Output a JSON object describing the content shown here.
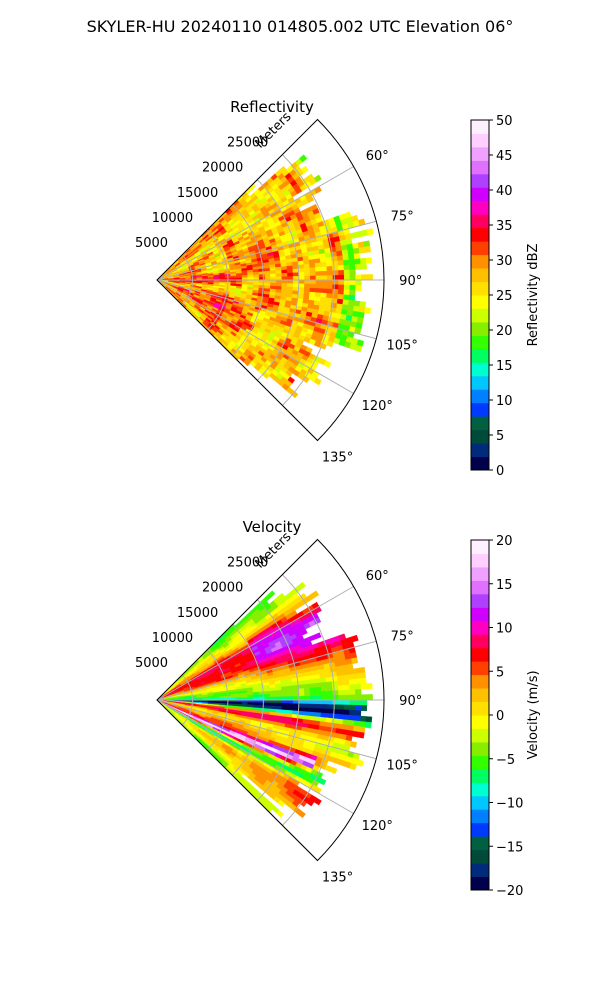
{
  "figure_title": "SKYLER-HU  20240110  014805.002 UTC Elevation 06°",
  "chart_data": [
    {
      "type": "heatmap",
      "projection": "polar-sector",
      "title": "Reflectivity",
      "range_axis_label": "Meters",
      "range_ticks": [
        5000,
        10000,
        15000,
        20000,
        25000
      ],
      "range_tick_labels": [
        "5000",
        "10000",
        "15000",
        "20000",
        "25000"
      ],
      "rlim": [
        0,
        32000
      ],
      "azimuth_range_deg": [
        45,
        135
      ],
      "azimuth_ticks": [
        60,
        75,
        90,
        105,
        120,
        135
      ],
      "azimuth_tick_labels": [
        "60°",
        "75°",
        "90°",
        "105°",
        "120°",
        "135°"
      ],
      "grid": true,
      "data_coverage": {
        "note": "Dense data fills sector from ~47° to ~133°, out to ~25000-31000 m",
        "dominant_value_range": [
          25,
          35
        ],
        "high_core_band_azimuths_deg": [
          83,
          95
        ],
        "high_core_value": 37
      },
      "colorbar": {
        "label": "Reflectivity dBZ",
        "vmin": 0,
        "vmax": 50,
        "ticks": [
          0,
          5,
          10,
          15,
          20,
          25,
          30,
          35,
          40,
          45,
          50
        ],
        "tick_labels": [
          "0",
          "5",
          "10",
          "15",
          "20",
          "25",
          "30",
          "35",
          "40",
          "45",
          "50"
        ],
        "colors": [
          "#00004d",
          "#002a7a",
          "#004a3a",
          "#006040",
          "#003aff",
          "#0080ff",
          "#00c8ff",
          "#00ffd0",
          "#00ff60",
          "#33ff00",
          "#88ee00",
          "#ccff00",
          "#ffff00",
          "#ffe000",
          "#ffc000",
          "#ff9000",
          "#ff4000",
          "#ff0000",
          "#ff0060",
          "#ff00c0",
          "#d000ff",
          "#b040ff",
          "#e070ff",
          "#f0a0ff",
          "#ffd0ff",
          "#fff0ff"
        ]
      }
    },
    {
      "type": "heatmap",
      "projection": "polar-sector",
      "title": "Velocity",
      "range_axis_label": "Meters",
      "range_ticks": [
        5000,
        10000,
        15000,
        20000,
        25000
      ],
      "range_tick_labels": [
        "5000",
        "10000",
        "15000",
        "20000",
        "25000"
      ],
      "rlim": [
        0,
        32000
      ],
      "azimuth_range_deg": [
        45,
        135
      ],
      "azimuth_ticks": [
        60,
        75,
        90,
        105,
        120,
        135
      ],
      "azimuth_tick_labels": [
        "60°",
        "75°",
        "90°",
        "105°",
        "120°",
        "135°"
      ],
      "grid": true,
      "data_coverage": {
        "note": "Banded velocity field: positive (magenta/red) near 65° and ~100°, negative (cyan) near 90-95° and 115-125°",
        "value_range": [
          -20,
          20
        ]
      },
      "colorbar": {
        "label": "Velocity (m/s)",
        "vmin": -20,
        "vmax": 20,
        "ticks": [
          -20,
          -15,
          -10,
          -5,
          0,
          5,
          10,
          15,
          20
        ],
        "tick_labels": [
          "−20",
          "−15",
          "−10",
          "−5",
          "0",
          "5",
          "10",
          "15",
          "20"
        ],
        "colors": [
          "#00004d",
          "#002a7a",
          "#004a3a",
          "#006040",
          "#003aff",
          "#0080ff",
          "#00c8ff",
          "#00ffd0",
          "#00ff60",
          "#33ff00",
          "#88ee00",
          "#ccff00",
          "#ffff00",
          "#ffe000",
          "#ffc000",
          "#ff9000",
          "#ff4000",
          "#ff0000",
          "#ff0060",
          "#ff00c0",
          "#d000ff",
          "#b040ff",
          "#e070ff",
          "#f0a0ff",
          "#ffd0ff",
          "#fff0ff"
        ]
      }
    }
  ]
}
